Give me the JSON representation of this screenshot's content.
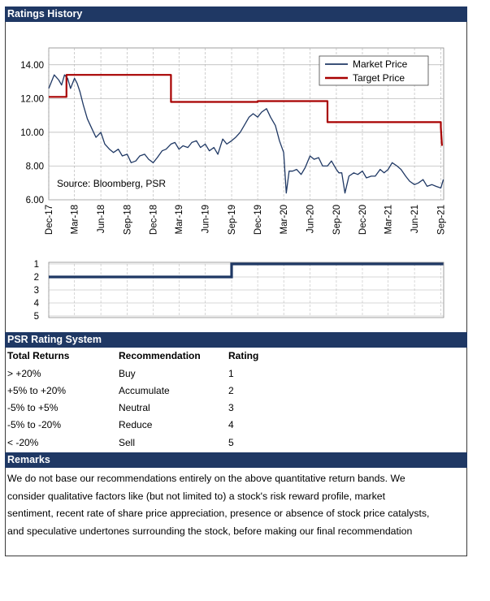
{
  "headers": {
    "ratings_history": "Ratings History",
    "rating_system": "PSR Rating System",
    "remarks": "Remarks"
  },
  "chart_data": [
    {
      "type": "line",
      "title": "",
      "ylim": [
        6,
        15
      ],
      "yticks": [
        "14.00",
        "12.00",
        "10.00",
        "8.00",
        "6.00"
      ],
      "ytick_values": [
        14,
        12,
        10,
        8,
        6
      ],
      "x_range": [
        "2017-12",
        "2021-09"
      ],
      "xticks": [
        "Dec-17",
        "Mar-18",
        "Jun-18",
        "Sep-18",
        "Dec-18",
        "Mar-19",
        "Jun-19",
        "Sep-19",
        "Dec-19",
        "Mar-20",
        "Jun-20",
        "Sep-20",
        "Dec-20",
        "Mar-21",
        "Jun-21",
        "Sep-21"
      ],
      "legend_position": "top-right",
      "annotation": "Source: Bloomberg, PSR",
      "colors": {
        "market": "#1f3864",
        "target": "#a80000",
        "grid": "#b0b0b0"
      },
      "series": [
        {
          "name": "Market Price",
          "x": [
            "2017-12-01",
            "2017-12-20",
            "2018-01-05",
            "2018-01-15",
            "2018-01-25",
            "2018-02-05",
            "2018-02-15",
            "2018-03-01",
            "2018-03-10",
            "2018-03-20",
            "2018-04-01",
            "2018-04-15",
            "2018-05-01",
            "2018-05-15",
            "2018-06-01",
            "2018-06-15",
            "2018-07-01",
            "2018-07-15",
            "2018-08-01",
            "2018-08-15",
            "2018-09-01",
            "2018-09-15",
            "2018-10-01",
            "2018-10-15",
            "2018-11-01",
            "2018-11-15",
            "2018-12-01",
            "2018-12-15",
            "2019-01-01",
            "2019-01-15",
            "2019-02-01",
            "2019-02-15",
            "2019-03-01",
            "2019-03-15",
            "2019-04-01",
            "2019-04-15",
            "2019-05-01",
            "2019-05-15",
            "2019-06-01",
            "2019-06-15",
            "2019-07-01",
            "2019-07-15",
            "2019-08-01",
            "2019-08-15",
            "2019-09-01",
            "2019-09-15",
            "2019-10-01",
            "2019-10-15",
            "2019-11-01",
            "2019-11-15",
            "2019-12-01",
            "2019-12-15",
            "2020-01-01",
            "2020-01-15",
            "2020-02-01",
            "2020-02-15",
            "2020-03-01",
            "2020-03-10",
            "2020-03-20",
            "2020-04-01",
            "2020-04-15",
            "2020-05-01",
            "2020-05-15",
            "2020-06-01",
            "2020-06-15",
            "2020-07-01",
            "2020-07-15",
            "2020-08-01",
            "2020-08-15",
            "2020-09-01",
            "2020-09-10",
            "2020-09-20",
            "2020-10-01",
            "2020-10-15",
            "2020-11-01",
            "2020-11-15",
            "2020-12-01",
            "2020-12-15",
            "2021-01-01",
            "2021-01-15",
            "2021-02-01",
            "2021-02-15",
            "2021-03-01",
            "2021-03-15",
            "2021-04-01",
            "2021-04-15",
            "2021-05-01",
            "2021-05-15",
            "2021-06-01",
            "2021-06-15",
            "2021-07-01",
            "2021-07-15",
            "2021-08-01",
            "2021-08-15",
            "2021-09-01",
            "2021-09-10"
          ],
          "y": [
            12.6,
            13.4,
            13.1,
            12.8,
            13.4,
            13.2,
            12.6,
            13.2,
            12.9,
            12.4,
            11.6,
            10.8,
            10.2,
            9.7,
            10.0,
            9.3,
            9.0,
            8.8,
            9.0,
            8.6,
            8.7,
            8.2,
            8.3,
            8.6,
            8.7,
            8.4,
            8.2,
            8.5,
            8.9,
            9.0,
            9.3,
            9.4,
            9.0,
            9.2,
            9.1,
            9.4,
            9.5,
            9.1,
            9.3,
            8.9,
            9.1,
            8.7,
            9.6,
            9.3,
            9.5,
            9.7,
            10.0,
            10.4,
            10.9,
            11.1,
            10.9,
            11.2,
            11.4,
            10.9,
            10.4,
            9.5,
            8.8,
            6.4,
            7.7,
            7.7,
            7.8,
            7.5,
            7.9,
            8.6,
            8.4,
            8.5,
            8.0,
            8.0,
            8.3,
            7.8,
            7.6,
            7.6,
            6.4,
            7.4,
            7.6,
            7.5,
            7.7,
            7.3,
            7.4,
            7.4,
            7.8,
            7.6,
            7.8,
            8.2,
            8.0,
            7.8,
            7.4,
            7.1,
            6.9,
            7.0,
            7.2,
            6.8,
            6.9,
            6.8,
            6.7,
            7.2
          ]
        },
        {
          "name": "Target Price",
          "x": [
            "2017-12-01",
            "2018-02-01",
            "2018-02-01",
            "2019-02-01",
            "2019-02-01",
            "2019-12-01",
            "2019-12-01",
            "2020-08-01",
            "2020-08-01",
            "2021-09-01",
            "2021-09-01",
            "2021-09-05"
          ],
          "y": [
            12.1,
            12.1,
            13.4,
            13.4,
            11.8,
            11.8,
            11.85,
            11.85,
            10.6,
            10.6,
            10.3,
            9.2
          ]
        }
      ]
    },
    {
      "type": "line",
      "title": "",
      "ylim": [
        5,
        1
      ],
      "yticks": [
        "1",
        "2",
        "3",
        "4",
        "5"
      ],
      "ytick_values": [
        1,
        2,
        3,
        4,
        5
      ],
      "x_range": [
        "2017-12",
        "2021-09"
      ],
      "series": [
        {
          "name": "",
          "x": [
            "2017-12-01",
            "2019-09-01",
            "2019-09-01",
            "2021-09-10"
          ],
          "y": [
            2,
            2,
            1,
            1
          ]
        }
      ]
    }
  ],
  "rating_table": {
    "columns": [
      "Total Returns",
      "Recommendation",
      "Rating"
    ],
    "rows": [
      [
        "> +20%",
        "Buy",
        "1"
      ],
      [
        "+5% to +20%",
        "Accumulate",
        "2"
      ],
      [
        "-5% to +5%",
        "Neutral",
        "3"
      ],
      [
        "-5% to -20%",
        "Reduce",
        "4"
      ],
      [
        "< -20%",
        "Sell",
        "5"
      ]
    ]
  },
  "remarks_text": [
    "We do not base our recommendations entirely on the  above quantitative return bands.  We",
    "consider qualitative factors like (but not limited to) a stock's risk reward profile, market",
    "sentiment, recent rate of share price appreciation, presence or absence of stock price catalysts,",
    "and speculative undertones surrounding the stock, before making our final recommendation"
  ]
}
